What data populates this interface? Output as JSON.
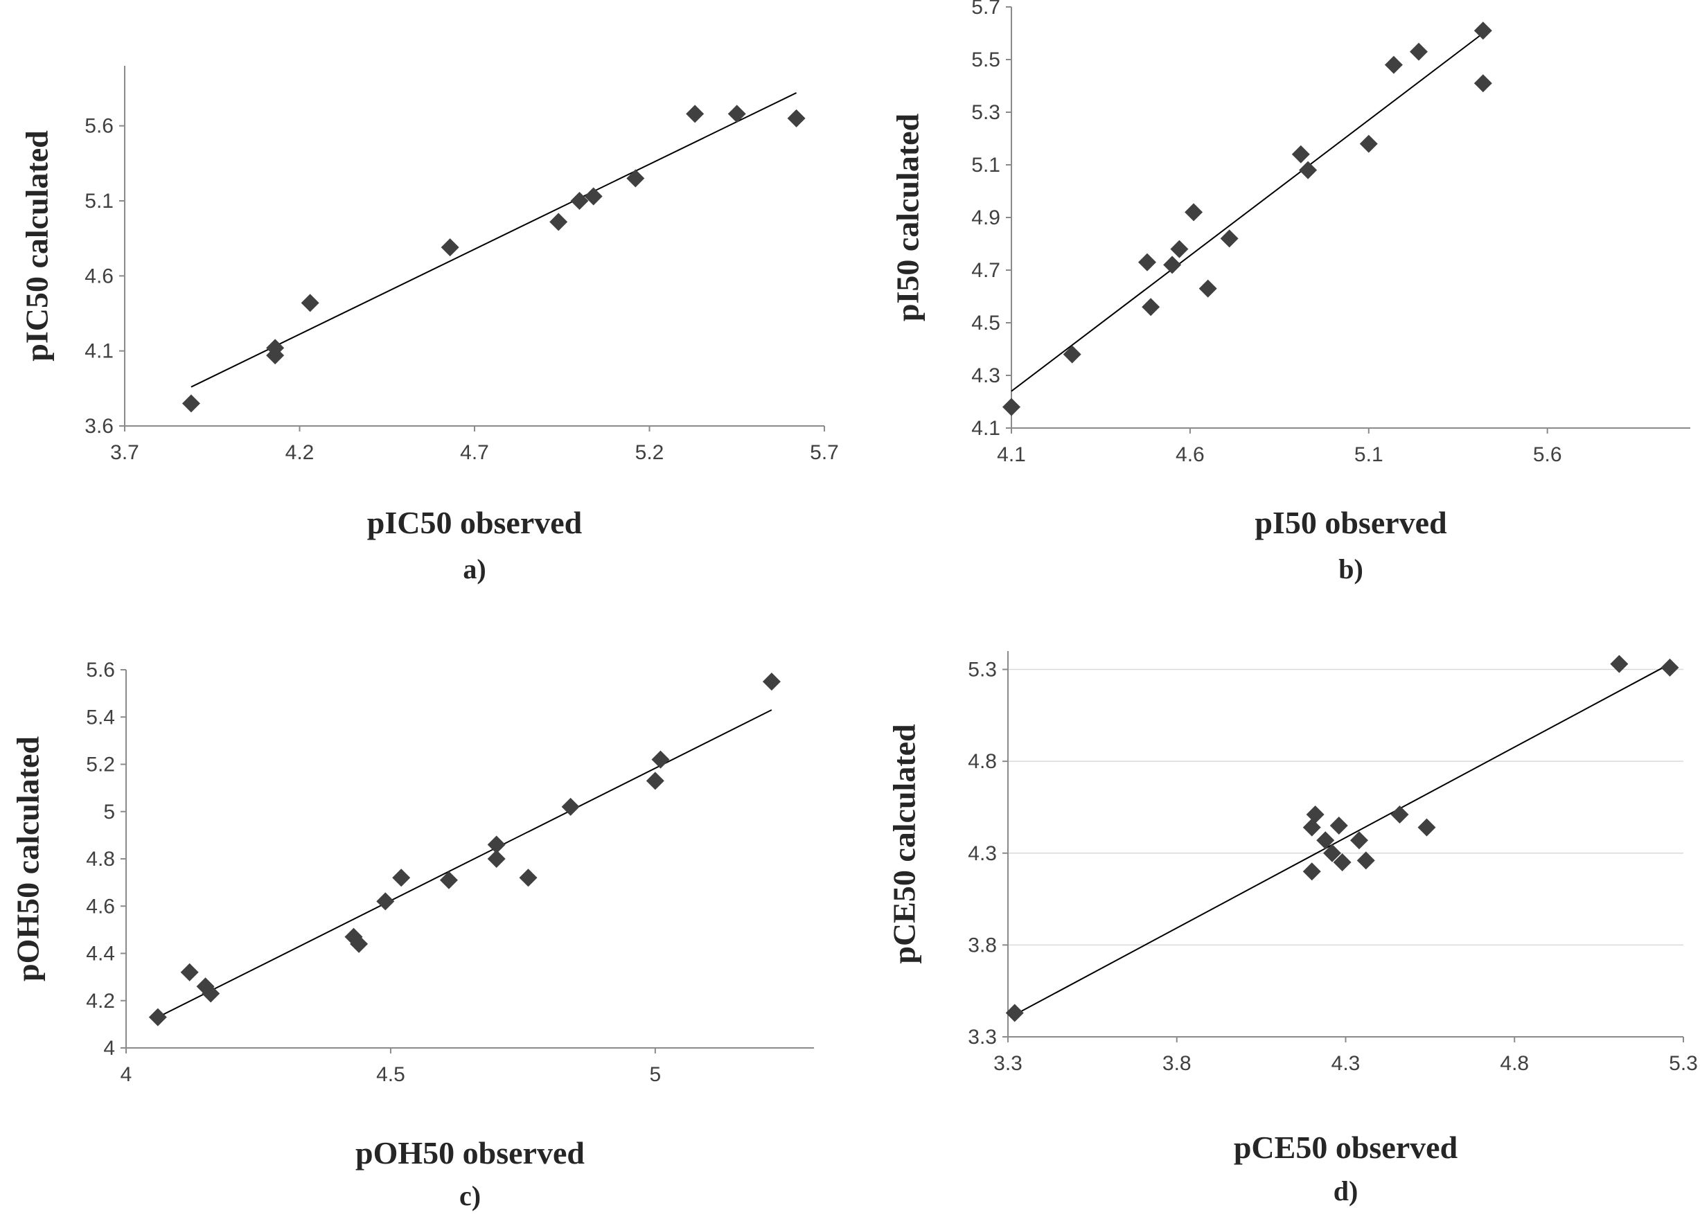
{
  "chart_data": [
    {
      "type": "scatter",
      "panel": "a)",
      "xlabel": "pIC50 observed",
      "ylabel": "pIC50 calculated",
      "xlim": [
        3.7,
        5.7
      ],
      "ylim": [
        3.6,
        6.0
      ],
      "xticks": [
        "3.7",
        "4.2",
        "4.7",
        "5.2",
        "5.7"
      ],
      "yticks": [
        "3.6",
        "4.1",
        "4.6",
        "5.1",
        "5.6"
      ],
      "trendline": [
        [
          3.89,
          3.86
        ],
        [
          5.62,
          5.82
        ]
      ],
      "points": [
        {
          "x": 3.89,
          "y": 3.75
        },
        {
          "x": 4.13,
          "y": 4.12
        },
        {
          "x": 4.13,
          "y": 4.07
        },
        {
          "x": 4.23,
          "y": 4.42
        },
        {
          "x": 4.63,
          "y": 4.79
        },
        {
          "x": 4.94,
          "y": 4.96
        },
        {
          "x": 5.0,
          "y": 5.1
        },
        {
          "x": 5.04,
          "y": 5.13
        },
        {
          "x": 5.16,
          "y": 5.25
        },
        {
          "x": 5.33,
          "y": 5.68
        },
        {
          "x": 5.45,
          "y": 5.68
        },
        {
          "x": 5.62,
          "y": 5.65
        }
      ]
    },
    {
      "type": "scatter",
      "panel": "b)",
      "xlabel": "pI50 observed",
      "ylabel": "pI50 calculated",
      "xlim": [
        4.1,
        6.0
      ],
      "ylim": [
        4.1,
        5.7
      ],
      "xticks": [
        "4.1",
        "4.6",
        "5.1",
        "5.6"
      ],
      "yticks": [
        "4.1",
        "4.3",
        "4.5",
        "4.7",
        "4.9",
        "5.1",
        "5.3",
        "5.5",
        "5.7"
      ],
      "trendline": [
        [
          4.1,
          4.24
        ],
        [
          5.42,
          5.6
        ]
      ],
      "points": [
        {
          "x": 4.1,
          "y": 4.18
        },
        {
          "x": 4.27,
          "y": 4.38
        },
        {
          "x": 4.48,
          "y": 4.73
        },
        {
          "x": 4.49,
          "y": 4.56
        },
        {
          "x": 4.55,
          "y": 4.72
        },
        {
          "x": 4.57,
          "y": 4.78
        },
        {
          "x": 4.61,
          "y": 4.92
        },
        {
          "x": 4.65,
          "y": 4.63
        },
        {
          "x": 4.71,
          "y": 4.82
        },
        {
          "x": 4.91,
          "y": 5.14
        },
        {
          "x": 4.93,
          "y": 5.08
        },
        {
          "x": 5.1,
          "y": 5.18
        },
        {
          "x": 5.17,
          "y": 5.48
        },
        {
          "x": 5.24,
          "y": 5.53
        },
        {
          "x": 5.42,
          "y": 5.61
        },
        {
          "x": 5.42,
          "y": 5.41
        }
      ]
    },
    {
      "type": "scatter",
      "panel": "c)",
      "xlabel": "pOH50 observed",
      "ylabel": "pOH50 calculated",
      "xlim": [
        4.0,
        5.3
      ],
      "ylim": [
        4.0,
        5.6
      ],
      "xticks": [
        "4",
        "4.5",
        "5"
      ],
      "yticks": [
        "4",
        "4.2",
        "4.4",
        "4.6",
        "4.8",
        "5",
        "5.2",
        "5.4",
        "5.6"
      ],
      "trendline": [
        [
          4.06,
          4.13
        ],
        [
          5.22,
          5.43
        ]
      ],
      "points": [
        {
          "x": 4.06,
          "y": 4.13
        },
        {
          "x": 4.12,
          "y": 4.32
        },
        {
          "x": 4.15,
          "y": 4.26
        },
        {
          "x": 4.16,
          "y": 4.23
        },
        {
          "x": 4.43,
          "y": 4.47
        },
        {
          "x": 4.44,
          "y": 4.44
        },
        {
          "x": 4.49,
          "y": 4.62
        },
        {
          "x": 4.52,
          "y": 4.72
        },
        {
          "x": 4.61,
          "y": 4.71
        },
        {
          "x": 4.7,
          "y": 4.86
        },
        {
          "x": 4.7,
          "y": 4.8
        },
        {
          "x": 4.76,
          "y": 4.72
        },
        {
          "x": 4.84,
          "y": 5.02
        },
        {
          "x": 5.0,
          "y": 5.13
        },
        {
          "x": 5.01,
          "y": 5.22
        },
        {
          "x": 5.22,
          "y": 5.55
        }
      ]
    },
    {
      "type": "scatter",
      "panel": "d)",
      "xlabel": "pCE50 observed",
      "ylabel": "pCE50 calculated",
      "xlim": [
        3.3,
        5.3
      ],
      "ylim": [
        3.3,
        5.4
      ],
      "xticks": [
        "3.3",
        "3.8",
        "4.3",
        "4.8",
        "5.3"
      ],
      "yticks": [
        "3.3",
        "3.8",
        "4.3",
        "4.8",
        "5.3"
      ],
      "trendline": [
        [
          3.32,
          3.42
        ],
        [
          5.26,
          5.33
        ]
      ],
      "points": [
        {
          "x": 3.32,
          "y": 3.43
        },
        {
          "x": 4.2,
          "y": 4.44
        },
        {
          "x": 4.21,
          "y": 4.51
        },
        {
          "x": 4.2,
          "y": 4.2
        },
        {
          "x": 4.24,
          "y": 4.37
        },
        {
          "x": 4.26,
          "y": 4.3
        },
        {
          "x": 4.28,
          "y": 4.45
        },
        {
          "x": 4.29,
          "y": 4.25
        },
        {
          "x": 4.34,
          "y": 4.37
        },
        {
          "x": 4.36,
          "y": 4.26
        },
        {
          "x": 4.46,
          "y": 4.51
        },
        {
          "x": 4.54,
          "y": 4.44
        },
        {
          "x": 5.11,
          "y": 5.33
        },
        {
          "x": 5.26,
          "y": 5.31
        }
      ]
    }
  ]
}
